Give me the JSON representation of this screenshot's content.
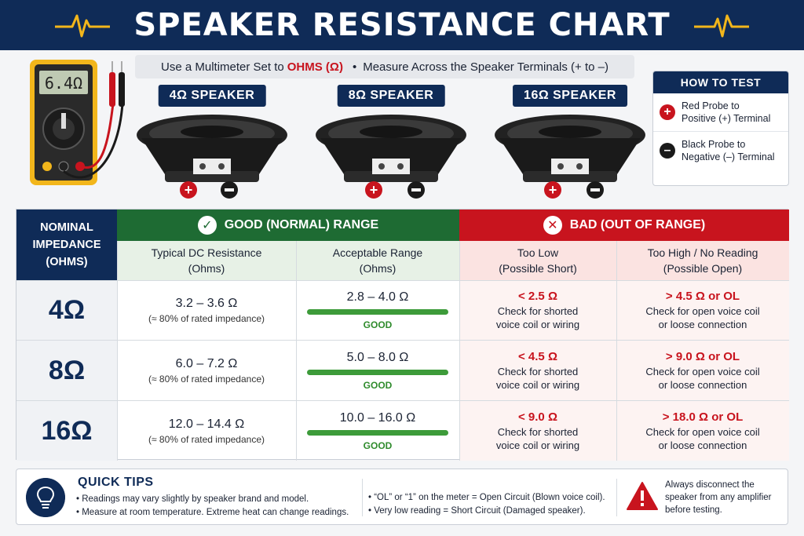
{
  "header": {
    "title": "SPEAKER RESISTANCE CHART"
  },
  "intro": {
    "part1": "Use a Multimeter Set to",
    "highlight": "OHMS (Ω)",
    "separator": "•",
    "part2": "Measure Across the Speaker Terminals (+ to –)"
  },
  "meter": {
    "display": "6.4Ω"
  },
  "speakers": [
    {
      "label": "4Ω SPEAKER"
    },
    {
      "label": "8Ω SPEAKER"
    },
    {
      "label": "16Ω SPEAKER"
    }
  ],
  "how_to_test": {
    "title": "HOW TO TEST",
    "steps": [
      {
        "icon": "plus-icon",
        "line1": "Red Probe to",
        "line2": "Positive (+) Terminal",
        "color": "#c8141e"
      },
      {
        "icon": "minus-icon",
        "line1": "Black Probe to",
        "line2": "Negative (–) Terminal",
        "color": "#1a1a1a"
      }
    ]
  },
  "table": {
    "nominal_header": {
      "line1": "NOMINAL",
      "line2": "IMPEDANCE",
      "line3": "(OHMS)"
    },
    "good_header": "GOOD (NORMAL) RANGE",
    "bad_header": "BAD (OUT OF RANGE)",
    "sub_headers": {
      "typical": {
        "line1": "Typical DC Resistance",
        "line2": "(Ohms)"
      },
      "acceptable": {
        "line1": "Acceptable Range",
        "line2": "(Ohms)"
      },
      "too_low": {
        "line1": "Too Low",
        "line2": "(Possible Short)"
      },
      "too_high": {
        "line1": "Too High / No Reading",
        "line2": "(Possible Open)"
      }
    },
    "rows": [
      {
        "nominal": "4Ω",
        "typical": "3.2 – 3.6 Ω",
        "typical_note": "(≈ 80% of rated impedance)",
        "acceptable": "2.8 – 4.0 Ω",
        "good_label": "GOOD",
        "low": "< 2.5 Ω",
        "low_d1": "Check for shorted",
        "low_d2": "voice coil or wiring",
        "high": "> 4.5 Ω or OL",
        "high_d1": "Check for open voice coil",
        "high_d2": "or loose connection"
      },
      {
        "nominal": "8Ω",
        "typical": "6.0 – 7.2 Ω",
        "typical_note": "(≈ 80% of rated impedance)",
        "acceptable": "5.0 – 8.0 Ω",
        "good_label": "GOOD",
        "low": "< 4.5 Ω",
        "low_d1": "Check for shorted",
        "low_d2": "voice coil or wiring",
        "high": "> 9.0 Ω or OL",
        "high_d1": "Check for open voice coil",
        "high_d2": "or loose connection"
      },
      {
        "nominal": "16Ω",
        "typical": "12.0 – 14.4 Ω",
        "typical_note": "(≈ 80% of rated impedance)",
        "acceptable": "10.0 – 16.0 Ω",
        "good_label": "GOOD",
        "low": "< 9.0 Ω",
        "low_d1": "Check for shorted",
        "low_d2": "voice coil or wiring",
        "high": "> 18.0 Ω or OL",
        "high_d1": "Check for open voice coil",
        "high_d2": "or loose connection"
      }
    ]
  },
  "tips": {
    "title": "QUICK TIPS",
    "col1": [
      "• Readings may vary slightly by speaker brand and model.",
      "• Measure at room temperature. Extreme heat can change readings."
    ],
    "col2": [
      "• “OL” or “1”  on the meter = Open Circuit (Blown voice coil).",
      "• Very low reading = Short Circuit (Damaged speaker)."
    ],
    "warning": "Always disconnect the speaker from any amplifier before testing."
  },
  "colors": {
    "navy": "#0f2b57",
    "good_green": "#1e6b33",
    "bad_red": "#c8141e",
    "bar_green": "#3d9b3a"
  }
}
